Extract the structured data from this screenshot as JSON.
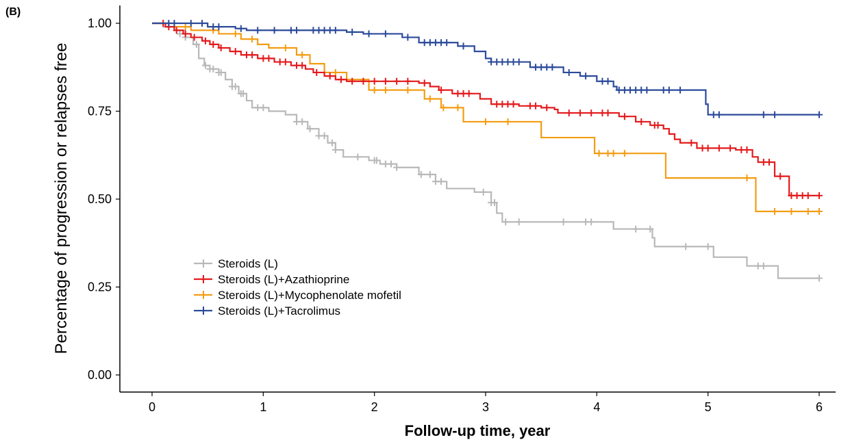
{
  "chart_data": {
    "type": "line",
    "panel_label": "(B)",
    "title": "",
    "xlabel": "Follow-up time, year",
    "ylabel": "Percentage of progression or relapses free",
    "xlim": [
      0,
      6
    ],
    "ylim": [
      0,
      1
    ],
    "x_ticks": [
      0,
      1,
      2,
      3,
      4,
      5,
      6
    ],
    "y_ticks": [
      0,
      0.25,
      0.5,
      0.75,
      1.0
    ],
    "y_tick_labels": [
      "0.00",
      "0.25",
      "0.50",
      "0.75",
      "1.00"
    ],
    "grid": false,
    "legend_position": "bottom-left",
    "series": [
      {
        "name": "Steroids (L)",
        "color": "#b8b8b8",
        "steps": [
          [
            0,
            1.0
          ],
          [
            0.1,
            0.99
          ],
          [
            0.2,
            0.98
          ],
          [
            0.3,
            0.96
          ],
          [
            0.37,
            0.94
          ],
          [
            0.42,
            0.9
          ],
          [
            0.47,
            0.88
          ],
          [
            0.52,
            0.87
          ],
          [
            0.6,
            0.86
          ],
          [
            0.66,
            0.84
          ],
          [
            0.72,
            0.82
          ],
          [
            0.78,
            0.8
          ],
          [
            0.85,
            0.78
          ],
          [
            0.9,
            0.76
          ],
          [
            1.05,
            0.75
          ],
          [
            1.2,
            0.74
          ],
          [
            1.3,
            0.72
          ],
          [
            1.4,
            0.7
          ],
          [
            1.5,
            0.68
          ],
          [
            1.58,
            0.66
          ],
          [
            1.65,
            0.64
          ],
          [
            1.72,
            0.62
          ],
          [
            1.95,
            0.61
          ],
          [
            2.05,
            0.6
          ],
          [
            2.2,
            0.59
          ],
          [
            2.4,
            0.57
          ],
          [
            2.55,
            0.55
          ],
          [
            2.65,
            0.53
          ],
          [
            2.9,
            0.52
          ],
          [
            3.05,
            0.49
          ],
          [
            3.1,
            0.46
          ],
          [
            3.15,
            0.435
          ],
          [
            4.15,
            0.415
          ],
          [
            4.5,
            0.39
          ],
          [
            4.52,
            0.365
          ],
          [
            5.05,
            0.335
          ],
          [
            5.35,
            0.31
          ],
          [
            5.63,
            0.275
          ]
        ],
        "end_x": 6.0,
        "censor": [
          [
            0.15,
            0.99
          ],
          [
            0.25,
            0.97
          ],
          [
            0.3,
            0.96
          ],
          [
            0.4,
            0.94
          ],
          [
            0.48,
            0.88
          ],
          [
            0.52,
            0.87
          ],
          [
            0.55,
            0.87
          ],
          [
            0.6,
            0.86
          ],
          [
            0.62,
            0.86
          ],
          [
            0.72,
            0.82
          ],
          [
            0.75,
            0.82
          ],
          [
            0.8,
            0.8
          ],
          [
            0.82,
            0.8
          ],
          [
            0.95,
            0.76
          ],
          [
            1.0,
            0.76
          ],
          [
            1.3,
            0.72
          ],
          [
            1.35,
            0.72
          ],
          [
            1.42,
            0.7
          ],
          [
            1.5,
            0.68
          ],
          [
            1.55,
            0.68
          ],
          [
            1.62,
            0.66
          ],
          [
            1.65,
            0.64
          ],
          [
            1.85,
            0.62
          ],
          [
            2.0,
            0.61
          ],
          [
            2.02,
            0.61
          ],
          [
            2.1,
            0.6
          ],
          [
            2.15,
            0.6
          ],
          [
            2.2,
            0.59
          ],
          [
            2.42,
            0.57
          ],
          [
            2.5,
            0.57
          ],
          [
            2.55,
            0.55
          ],
          [
            2.6,
            0.55
          ],
          [
            2.98,
            0.52
          ],
          [
            3.05,
            0.49
          ],
          [
            3.08,
            0.49
          ],
          [
            3.18,
            0.435
          ],
          [
            3.3,
            0.435
          ],
          [
            3.7,
            0.435
          ],
          [
            3.9,
            0.435
          ],
          [
            3.95,
            0.435
          ],
          [
            4.35,
            0.415
          ],
          [
            4.48,
            0.415
          ],
          [
            4.8,
            0.365
          ],
          [
            5.0,
            0.365
          ],
          [
            5.45,
            0.31
          ],
          [
            5.5,
            0.31
          ],
          [
            6.0,
            0.275
          ]
        ]
      },
      {
        "name": "Steroids (L)+Azathioprine",
        "color": "#e31a1c",
        "steps": [
          [
            0,
            1.0
          ],
          [
            0.12,
            0.99
          ],
          [
            0.2,
            0.98
          ],
          [
            0.28,
            0.97
          ],
          [
            0.35,
            0.96
          ],
          [
            0.45,
            0.95
          ],
          [
            0.52,
            0.94
          ],
          [
            0.6,
            0.93
          ],
          [
            0.7,
            0.92
          ],
          [
            0.8,
            0.91
          ],
          [
            0.95,
            0.9
          ],
          [
            1.1,
            0.89
          ],
          [
            1.25,
            0.88
          ],
          [
            1.38,
            0.87
          ],
          [
            1.45,
            0.86
          ],
          [
            1.55,
            0.85
          ],
          [
            1.65,
            0.84
          ],
          [
            1.75,
            0.835
          ],
          [
            2.4,
            0.83
          ],
          [
            2.5,
            0.82
          ],
          [
            2.58,
            0.81
          ],
          [
            2.7,
            0.8
          ],
          [
            2.95,
            0.785
          ],
          [
            3.05,
            0.77
          ],
          [
            3.3,
            0.765
          ],
          [
            3.5,
            0.76
          ],
          [
            3.62,
            0.755
          ],
          [
            3.65,
            0.745
          ],
          [
            4.2,
            0.735
          ],
          [
            4.35,
            0.72
          ],
          [
            4.48,
            0.71
          ],
          [
            4.6,
            0.7
          ],
          [
            4.65,
            0.685
          ],
          [
            4.7,
            0.67
          ],
          [
            4.75,
            0.66
          ],
          [
            4.9,
            0.645
          ],
          [
            5.25,
            0.64
          ],
          [
            5.4,
            0.62
          ],
          [
            5.45,
            0.605
          ],
          [
            5.6,
            0.565
          ],
          [
            5.73,
            0.51
          ]
        ],
        "end_x": 6.0,
        "censor": [
          [
            0.1,
            1.0
          ],
          [
            0.15,
            0.99
          ],
          [
            0.22,
            0.98
          ],
          [
            0.3,
            0.97
          ],
          [
            0.38,
            0.96
          ],
          [
            0.48,
            0.95
          ],
          [
            0.55,
            0.94
          ],
          [
            0.62,
            0.93
          ],
          [
            0.75,
            0.92
          ],
          [
            0.85,
            0.91
          ],
          [
            0.9,
            0.91
          ],
          [
            1.0,
            0.9
          ],
          [
            1.05,
            0.9
          ],
          [
            1.15,
            0.89
          ],
          [
            1.2,
            0.89
          ],
          [
            1.3,
            0.88
          ],
          [
            1.35,
            0.88
          ],
          [
            1.48,
            0.86
          ],
          [
            1.6,
            0.85
          ],
          [
            1.7,
            0.84
          ],
          [
            1.8,
            0.835
          ],
          [
            1.9,
            0.835
          ],
          [
            2.0,
            0.835
          ],
          [
            2.1,
            0.835
          ],
          [
            2.2,
            0.835
          ],
          [
            2.3,
            0.835
          ],
          [
            2.45,
            0.83
          ],
          [
            2.6,
            0.81
          ],
          [
            2.75,
            0.8
          ],
          [
            2.8,
            0.8
          ],
          [
            2.85,
            0.8
          ],
          [
            3.1,
            0.77
          ],
          [
            3.15,
            0.77
          ],
          [
            3.2,
            0.77
          ],
          [
            3.25,
            0.77
          ],
          [
            3.4,
            0.765
          ],
          [
            3.45,
            0.765
          ],
          [
            3.55,
            0.76
          ],
          [
            3.75,
            0.745
          ],
          [
            3.85,
            0.745
          ],
          [
            3.95,
            0.745
          ],
          [
            4.05,
            0.745
          ],
          [
            4.1,
            0.745
          ],
          [
            4.25,
            0.735
          ],
          [
            4.4,
            0.72
          ],
          [
            4.52,
            0.71
          ],
          [
            4.55,
            0.71
          ],
          [
            4.85,
            0.66
          ],
          [
            4.95,
            0.645
          ],
          [
            5.0,
            0.645
          ],
          [
            5.1,
            0.645
          ],
          [
            5.2,
            0.645
          ],
          [
            5.3,
            0.64
          ],
          [
            5.35,
            0.64
          ],
          [
            5.5,
            0.605
          ],
          [
            5.55,
            0.605
          ],
          [
            5.65,
            0.565
          ],
          [
            5.75,
            0.51
          ],
          [
            5.8,
            0.51
          ],
          [
            5.85,
            0.51
          ],
          [
            5.9,
            0.51
          ],
          [
            6.0,
            0.51
          ]
        ]
      },
      {
        "name": "Steroids (L)+Mycophenolate mofetil",
        "color": "#f39c12",
        "steps": [
          [
            0,
            1.0
          ],
          [
            0.2,
            0.99
          ],
          [
            0.35,
            0.98
          ],
          [
            0.6,
            0.97
          ],
          [
            0.8,
            0.955
          ],
          [
            0.95,
            0.94
          ],
          [
            1.05,
            0.93
          ],
          [
            1.3,
            0.91
          ],
          [
            1.42,
            0.885
          ],
          [
            1.55,
            0.86
          ],
          [
            1.75,
            0.84
          ],
          [
            1.95,
            0.81
          ],
          [
            2.45,
            0.785
          ],
          [
            2.6,
            0.76
          ],
          [
            2.8,
            0.72
          ],
          [
            3.5,
            0.675
          ],
          [
            3.98,
            0.63
          ],
          [
            4.62,
            0.56
          ],
          [
            5.43,
            0.465
          ]
        ],
        "end_x": 6.0,
        "censor": [
          [
            0.3,
            0.99
          ],
          [
            0.55,
            0.98
          ],
          [
            0.75,
            0.97
          ],
          [
            0.9,
            0.955
          ],
          [
            1.2,
            0.93
          ],
          [
            1.35,
            0.91
          ],
          [
            1.55,
            0.86
          ],
          [
            1.65,
            0.86
          ],
          [
            1.7,
            0.84
          ],
          [
            2.0,
            0.81
          ],
          [
            2.1,
            0.81
          ],
          [
            2.3,
            0.81
          ],
          [
            2.5,
            0.785
          ],
          [
            2.62,
            0.76
          ],
          [
            2.75,
            0.76
          ],
          [
            3.0,
            0.72
          ],
          [
            3.2,
            0.72
          ],
          [
            4.02,
            0.63
          ],
          [
            4.1,
            0.63
          ],
          [
            4.15,
            0.63
          ],
          [
            4.25,
            0.63
          ],
          [
            5.35,
            0.56
          ],
          [
            5.6,
            0.465
          ],
          [
            5.75,
            0.465
          ],
          [
            5.9,
            0.465
          ],
          [
            6.0,
            0.465
          ]
        ]
      },
      {
        "name": "Steroids (L)+Tacrolimus",
        "color": "#2b4a9b",
        "steps": [
          [
            0,
            1.0
          ],
          [
            0.5,
            0.99
          ],
          [
            0.75,
            0.985
          ],
          [
            0.85,
            0.98
          ],
          [
            1.75,
            0.975
          ],
          [
            1.9,
            0.97
          ],
          [
            2.25,
            0.96
          ],
          [
            2.4,
            0.945
          ],
          [
            2.75,
            0.935
          ],
          [
            2.9,
            0.92
          ],
          [
            3.0,
            0.9
          ],
          [
            3.05,
            0.89
          ],
          [
            3.4,
            0.875
          ],
          [
            3.7,
            0.86
          ],
          [
            3.85,
            0.85
          ],
          [
            4.0,
            0.835
          ],
          [
            4.15,
            0.82
          ],
          [
            4.18,
            0.81
          ],
          [
            4.98,
            0.77
          ],
          [
            5.0,
            0.74
          ]
        ],
        "end_x": 6.0,
        "censor": [
          [
            0.15,
            1.0
          ],
          [
            0.2,
            1.0
          ],
          [
            0.35,
            1.0
          ],
          [
            0.45,
            1.0
          ],
          [
            0.55,
            0.99
          ],
          [
            0.6,
            0.99
          ],
          [
            0.8,
            0.985
          ],
          [
            0.95,
            0.98
          ],
          [
            1.1,
            0.98
          ],
          [
            1.25,
            0.98
          ],
          [
            1.3,
            0.98
          ],
          [
            1.45,
            0.98
          ],
          [
            1.5,
            0.98
          ],
          [
            1.55,
            0.98
          ],
          [
            1.6,
            0.98
          ],
          [
            1.65,
            0.98
          ],
          [
            1.8,
            0.975
          ],
          [
            1.95,
            0.97
          ],
          [
            2.1,
            0.97
          ],
          [
            2.3,
            0.96
          ],
          [
            2.45,
            0.945
          ],
          [
            2.5,
            0.945
          ],
          [
            2.55,
            0.945
          ],
          [
            2.6,
            0.945
          ],
          [
            2.65,
            0.945
          ],
          [
            2.8,
            0.935
          ],
          [
            3.05,
            0.89
          ],
          [
            3.1,
            0.89
          ],
          [
            3.15,
            0.89
          ],
          [
            3.2,
            0.89
          ],
          [
            3.25,
            0.89
          ],
          [
            3.3,
            0.89
          ],
          [
            3.45,
            0.875
          ],
          [
            3.5,
            0.875
          ],
          [
            3.55,
            0.875
          ],
          [
            3.6,
            0.875
          ],
          [
            3.75,
            0.86
          ],
          [
            3.9,
            0.85
          ],
          [
            4.05,
            0.835
          ],
          [
            4.1,
            0.835
          ],
          [
            4.2,
            0.81
          ],
          [
            4.25,
            0.81
          ],
          [
            4.3,
            0.81
          ],
          [
            4.35,
            0.81
          ],
          [
            4.4,
            0.81
          ],
          [
            4.45,
            0.81
          ],
          [
            4.6,
            0.81
          ],
          [
            4.65,
            0.81
          ],
          [
            4.75,
            0.81
          ],
          [
            5.05,
            0.74
          ],
          [
            5.1,
            0.74
          ],
          [
            5.5,
            0.74
          ],
          [
            5.6,
            0.74
          ],
          [
            6.0,
            0.74
          ]
        ]
      }
    ]
  }
}
